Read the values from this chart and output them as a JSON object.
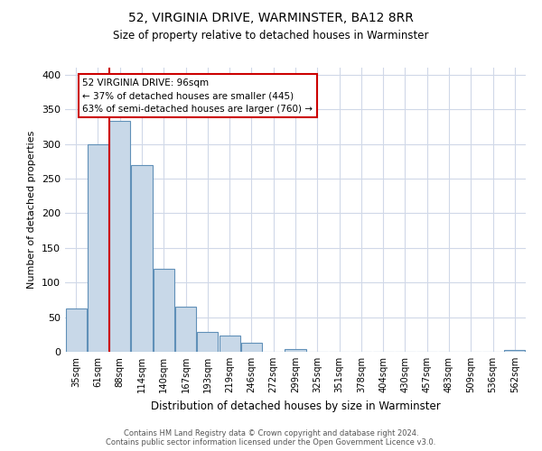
{
  "title": "52, VIRGINIA DRIVE, WARMINSTER, BA12 8RR",
  "subtitle": "Size of property relative to detached houses in Warminster",
  "xlabel": "Distribution of detached houses by size in Warminster",
  "ylabel": "Number of detached properties",
  "bar_labels": [
    "35sqm",
    "61sqm",
    "88sqm",
    "114sqm",
    "140sqm",
    "167sqm",
    "193sqm",
    "219sqm",
    "246sqm",
    "272sqm",
    "299sqm",
    "325sqm",
    "351sqm",
    "378sqm",
    "404sqm",
    "430sqm",
    "457sqm",
    "483sqm",
    "509sqm",
    "536sqm",
    "562sqm"
  ],
  "bar_values": [
    63,
    300,
    333,
    270,
    120,
    65,
    28,
    24,
    13,
    0,
    4,
    0,
    0,
    0,
    0,
    0,
    0,
    0,
    0,
    0,
    3
  ],
  "bar_color": "#c8d8e8",
  "bar_edge_color": "#6090b8",
  "vline_color": "#cc0000",
  "annotation_text": "52 VIRGINIA DRIVE: 96sqm\n← 37% of detached houses are smaller (445)\n63% of semi-detached houses are larger (760) →",
  "annotation_box_color": "#ffffff",
  "annotation_box_edge_color": "#cc0000",
  "ylim": [
    0,
    410
  ],
  "yticks": [
    0,
    50,
    100,
    150,
    200,
    250,
    300,
    350,
    400
  ],
  "bg_color": "#ffffff",
  "grid_color": "#d0d8e8",
  "footer_line1": "Contains HM Land Registry data © Crown copyright and database right 2024.",
  "footer_line2": "Contains public sector information licensed under the Open Government Licence v3.0."
}
